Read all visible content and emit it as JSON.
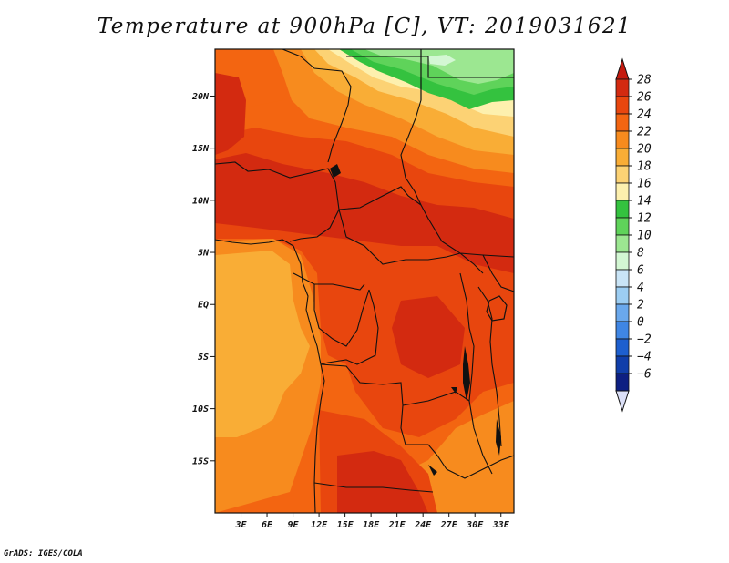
{
  "title": "Temperature at 900hPa [C], VT: 2019031621",
  "credit": "GrADS: IGES/COLA",
  "map": {
    "lat_range": [
      -20,
      24.5
    ],
    "lon_range": [
      0,
      34.5
    ],
    "lat_ticks": [
      {
        "value": 20,
        "label": "20N"
      },
      {
        "value": 15,
        "label": "15N"
      },
      {
        "value": 10,
        "label": "10N"
      },
      {
        "value": 5,
        "label": "5N"
      },
      {
        "value": 0,
        "label": "EQ"
      },
      {
        "value": -5,
        "label": "5S"
      },
      {
        "value": -10,
        "label": "10S"
      },
      {
        "value": -15,
        "label": "15S"
      }
    ],
    "lon_ticks": [
      {
        "value": 3,
        "label": "3E"
      },
      {
        "value": 6,
        "label": "6E"
      },
      {
        "value": 9,
        "label": "9E"
      },
      {
        "value": 12,
        "label": "12E"
      },
      {
        "value": 15,
        "label": "15E"
      },
      {
        "value": 18,
        "label": "18E"
      },
      {
        "value": 21,
        "label": "21E"
      },
      {
        "value": 24,
        "label": "24E"
      },
      {
        "value": 27,
        "label": "27E"
      },
      {
        "value": 30,
        "label": "30E"
      },
      {
        "value": 33,
        "label": "33E"
      }
    ]
  },
  "colorbar": {
    "levels": [
      28,
      26,
      24,
      22,
      20,
      18,
      16,
      14,
      12,
      10,
      8,
      6,
      4,
      2,
      0,
      -2,
      -4,
      -6
    ],
    "labels": [
      "28",
      "26",
      "24",
      "22",
      "20",
      "18",
      "16",
      "14",
      "12",
      "10",
      "8",
      "6",
      "4",
      "2",
      "0",
      "−2",
      "−4",
      "−6"
    ],
    "bands": [
      "#d32a10",
      "#e8460e",
      "#f36511",
      "#f78b1e",
      "#f9ad36",
      "#fcd274",
      "#fdf0ae",
      "#34c23f",
      "#5fd35a",
      "#9ce791",
      "#d3f7d3",
      "#c9e4f6",
      "#9ccdf2",
      "#6aa8ec",
      "#3f86e4",
      "#1d5fcf",
      "#103eaa",
      "#0d1f82"
    ],
    "top_color": "#c41a0e",
    "bottom_color": "#dce0f8"
  },
  "field_colors": {
    "t28": "#d32a10",
    "t26": "#e8460e",
    "t24": "#f36511",
    "t22": "#f78b1e",
    "t20": "#f9ad36",
    "t18": "#fcd274",
    "t16": "#fdf0ae",
    "t14": "#34c23f",
    "t12": "#5fd35a",
    "t10": "#9ce791",
    "t8": "#d3f7d3"
  }
}
